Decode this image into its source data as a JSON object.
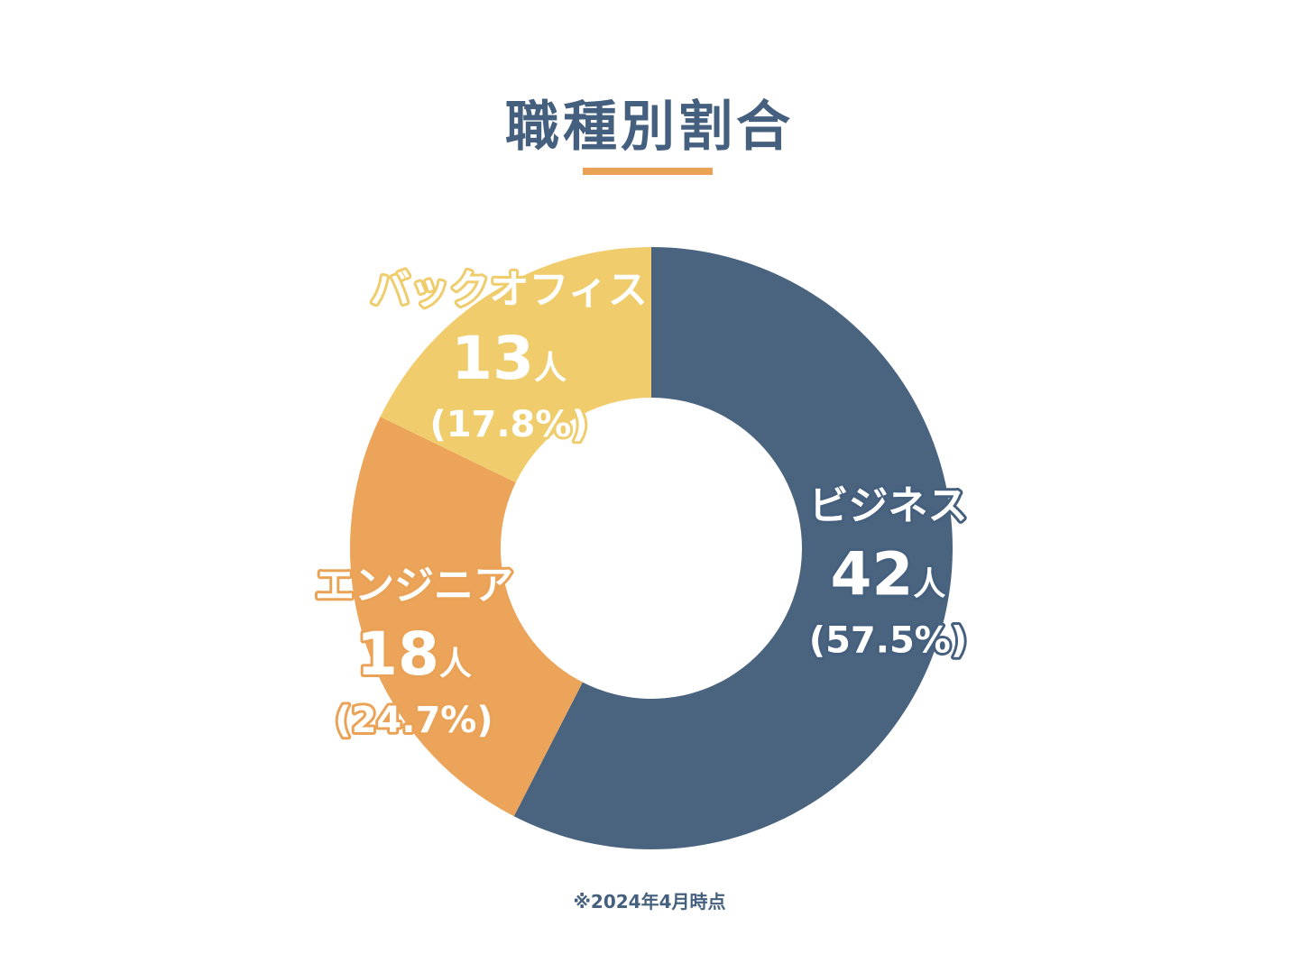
{
  "header": {
    "title": "職種別割合"
  },
  "footer": {
    "note": "※2024年4月時点"
  },
  "colors": {
    "title": "#45607e",
    "underline": "#eaa256",
    "footnote": "#45607e",
    "label_stroke_business": "#45607e",
    "label_stroke_engineer": "#eaa256",
    "label_stroke_backoffice": "#efcc6c"
  },
  "chart_data": {
    "type": "pie",
    "variant": "donut",
    "title": "職種別割合",
    "unit": "人",
    "slices": [
      {
        "name": "ビジネス",
        "value": 42,
        "count_label": "42",
        "percent_label": "(57.5%)",
        "color": "#4a6480"
      },
      {
        "name": "エンジニア",
        "value": 18,
        "count_label": "18",
        "percent_label": "(24.7%)",
        "color": "#eba459"
      },
      {
        "name": "バックオフィス",
        "value": 13,
        "count_label": "13",
        "percent_label": "(17.8%)",
        "color": "#f1cc6d"
      }
    ]
  }
}
